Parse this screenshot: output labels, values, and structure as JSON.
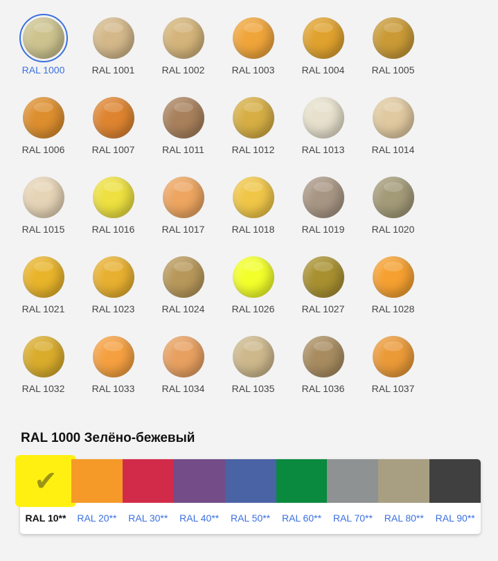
{
  "colors": [
    {
      "label": "RAL 1000",
      "color": "#cdc38f",
      "selected": true
    },
    {
      "label": "RAL 1001",
      "color": "#d4b88a"
    },
    {
      "label": "RAL 1002",
      "color": "#d4b47a"
    },
    {
      "label": "RAL 1003",
      "color": "#f0a53a"
    },
    {
      "label": "RAL 1004",
      "color": "#e0a22e"
    },
    {
      "label": "RAL 1005",
      "color": "#c99a36"
    },
    {
      "label": "RAL 1006",
      "color": "#dd8e2e"
    },
    {
      "label": "RAL 1007",
      "color": "#de8430"
    },
    {
      "label": "RAL 1011",
      "color": "#a8805c"
    },
    {
      "label": "RAL 1012",
      "color": "#d6ae44"
    },
    {
      "label": "RAL 1013",
      "color": "#e6e0cc"
    },
    {
      "label": "RAL 1014",
      "color": "#e0c9a0"
    },
    {
      "label": "RAL 1015",
      "color": "#e6d4b6"
    },
    {
      "label": "RAL 1016",
      "color": "#ede040"
    },
    {
      "label": "RAL 1017",
      "color": "#eda560"
    },
    {
      "label": "RAL 1018",
      "color": "#f0c648"
    },
    {
      "label": "RAL 1019",
      "color": "#a89684"
    },
    {
      "label": "RAL 1020",
      "color": "#a39a78"
    },
    {
      "label": "RAL 1021",
      "color": "#e8b42a"
    },
    {
      "label": "RAL 1023",
      "color": "#e8b030"
    },
    {
      "label": "RAL 1024",
      "color": "#b8985a"
    },
    {
      "label": "RAL 1026",
      "color": "#f2ff2a"
    },
    {
      "label": "RAL 1027",
      "color": "#a89030"
    },
    {
      "label": "RAL 1028",
      "color": "#f5a030"
    },
    {
      "label": "RAL 1032",
      "color": "#d9ac2c"
    },
    {
      "label": "RAL 1033",
      "color": "#f5a040"
    },
    {
      "label": "RAL 1034",
      "color": "#e8a060"
    },
    {
      "label": "RAL 1035",
      "color": "#cdb88c"
    },
    {
      "label": "RAL 1036",
      "color": "#a88c60"
    },
    {
      "label": "RAL 1037",
      "color": "#eb9a38"
    }
  ],
  "selected_title": "RAL 1000 Зелёно-бежевый",
  "groups": [
    {
      "label": "RAL 10**",
      "color": "#fff012",
      "selected": true,
      "icon": "check-icon"
    },
    {
      "label": "RAL 20**",
      "color": "#f59a28"
    },
    {
      "label": "RAL 30**",
      "color": "#d22b4a"
    },
    {
      "label": "RAL 40**",
      "color": "#744c88"
    },
    {
      "label": "RAL 50**",
      "color": "#4a63a5"
    },
    {
      "label": "RAL 60**",
      "color": "#0a8a3e"
    },
    {
      "label": "RAL 70**",
      "color": "#8f9293"
    },
    {
      "label": "RAL 80**",
      "color": "#a89e82"
    },
    {
      "label": "RAL 90**",
      "color": "#404040"
    }
  ]
}
